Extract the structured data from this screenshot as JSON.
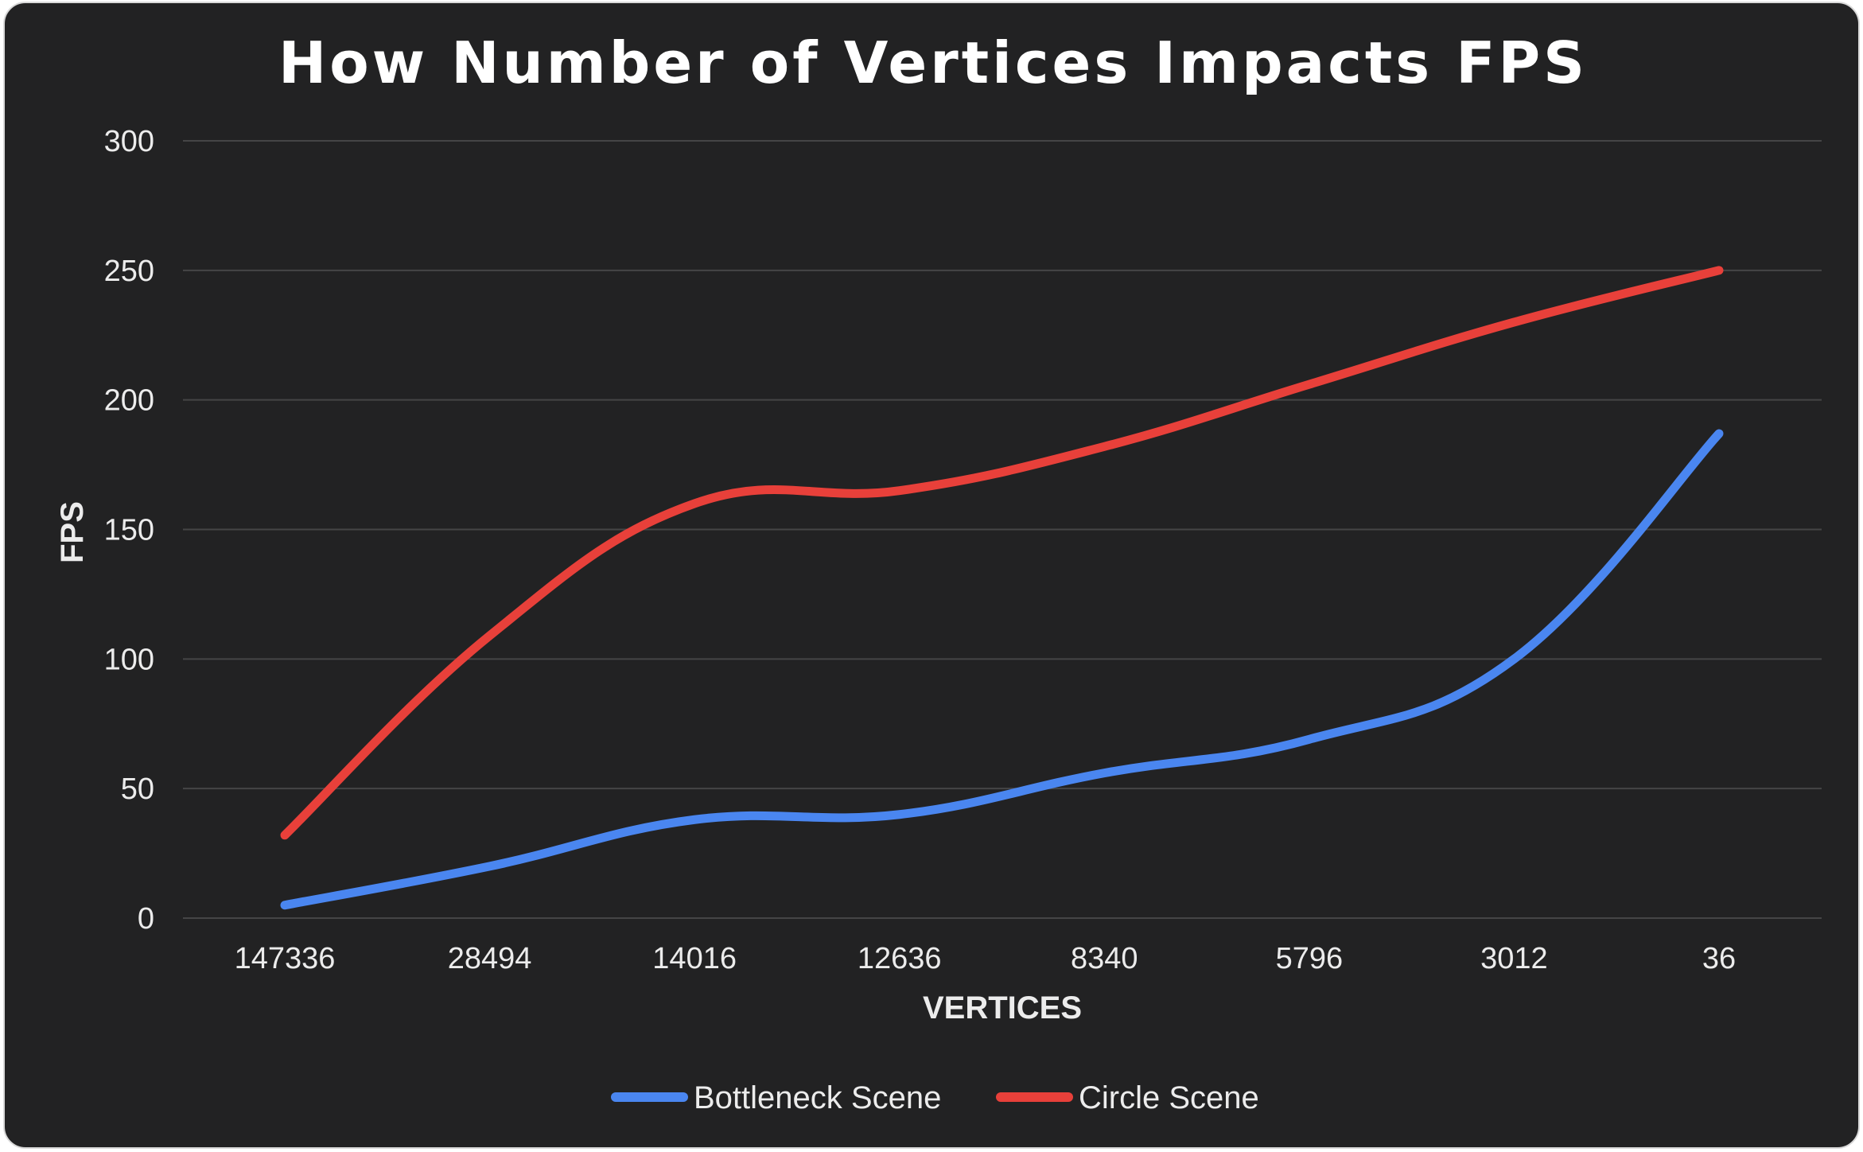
{
  "chart_data": {
    "type": "line",
    "title": "How Number of Vertices Impacts FPS",
    "xlabel": "VERTICES",
    "ylabel": "FPS",
    "categories": [
      "147336",
      "28494",
      "14016",
      "12636",
      "8340",
      "5796",
      "3012",
      "36"
    ],
    "ylim": [
      0,
      300
    ],
    "yticks": [
      0,
      50,
      100,
      150,
      200,
      250,
      300
    ],
    "grid": true,
    "legend_position": "bottom",
    "series": [
      {
        "name": "Bottleneck Scene",
        "color": "#4a86f0",
        "values": [
          5,
          20,
          38,
          40,
          56,
          69,
          100,
          187
        ]
      },
      {
        "name": "Circle Scene",
        "color": "#e8403a",
        "values": [
          32,
          109,
          160,
          165,
          182,
          206,
          230,
          250
        ]
      }
    ]
  }
}
